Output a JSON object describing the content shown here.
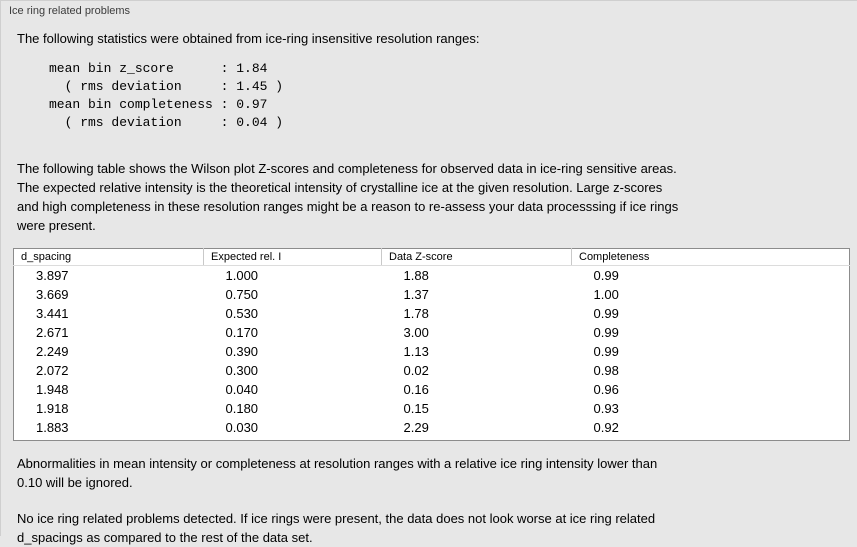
{
  "panel": {
    "title": "Ice ring related problems"
  },
  "sections": {
    "intro": "The following statistics were obtained from ice-ring insensitive resolution ranges:",
    "stats_lines": [
      "mean bin z_score      : 1.84",
      "  ( rms deviation     : 1.45 )",
      "mean bin completeness : 0.97",
      "  ( rms deviation     : 0.04 )"
    ],
    "description_lines": [
      "The following table shows the Wilson plot Z-scores and completeness for observed data in ice-ring sensitive areas.",
      "The expected relative intensity is the theoretical intensity of crystalline ice at the given resolution. Large z-scores",
      "and high completeness in these resolution ranges might be a reason to re-assess your data processsing if ice rings",
      "were present."
    ],
    "note_lines": [
      "Abnormalities in mean intensity or completeness at resolution ranges with a relative ice ring intensity lower than",
      "0.10 will be ignored."
    ],
    "conclusion_lines": [
      "No ice ring related problems detected. If ice rings were present, the data does not look worse at ice ring related",
      "d_spacings as compared to the rest of the data set."
    ]
  },
  "table": {
    "columns": [
      "d_spacing",
      "Expected rel. I",
      "Data Z-score",
      "Completeness"
    ],
    "rows": [
      [
        "3.897",
        "1.000",
        "1.88",
        "0.99"
      ],
      [
        "3.669",
        "0.750",
        "1.37",
        "1.00"
      ],
      [
        "3.441",
        "0.530",
        "1.78",
        "0.99"
      ],
      [
        "2.671",
        "0.170",
        "3.00",
        "0.99"
      ],
      [
        "2.249",
        "0.390",
        "1.13",
        "0.99"
      ],
      [
        "2.072",
        "0.300",
        "0.02",
        "0.98"
      ],
      [
        "1.948",
        "0.040",
        "0.16",
        "0.96"
      ],
      [
        "1.918",
        "0.180",
        "0.15",
        "0.93"
      ],
      [
        "1.883",
        "0.030",
        "2.29",
        "0.92"
      ]
    ]
  },
  "colors": {
    "background": "#e7e7e7",
    "table_background": "#ffffff",
    "table_border": "#8c8c8c",
    "text": "#000000"
  }
}
